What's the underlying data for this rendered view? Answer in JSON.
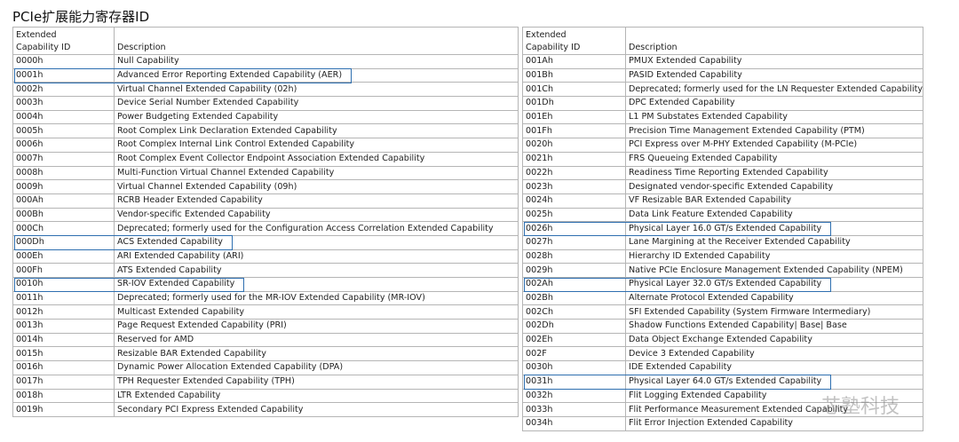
{
  "title": "PCIe扩展能力寄存器ID",
  "watermark": "芯塾科技",
  "tables": [
    {
      "header": [
        "Extended\nCapability ID",
        "Description"
      ],
      "highlighted": [
        1,
        13,
        16
      ],
      "rows": [
        [
          "0000h",
          "Null Capability"
        ],
        [
          "0001h",
          "Advanced Error Reporting Extended Capability (AER)"
        ],
        [
          "0002h",
          "Virtual Channel Extended Capability (02h)"
        ],
        [
          "0003h",
          "Device Serial Number Extended Capability"
        ],
        [
          "0004h",
          "Power Budgeting Extended Capability"
        ],
        [
          "0005h",
          "Root Complex Link Declaration Extended Capability"
        ],
        [
          "0006h",
          "Root Complex Internal Link Control Extended Capability"
        ],
        [
          "0007h",
          "Root Complex Event Collector Endpoint Association Extended Capability"
        ],
        [
          "0008h",
          "Multi-Function Virtual Channel Extended Capability"
        ],
        [
          "0009h",
          "Virtual Channel Extended Capability (09h)"
        ],
        [
          "000Ah",
          "RCRB Header Extended Capability"
        ],
        [
          "000Bh",
          "Vendor-specific Extended Capability"
        ],
        [
          "000Ch",
          "Deprecated; formerly used for the Configuration Access Correlation Extended Capability"
        ],
        [
          "000Dh",
          "ACS Extended Capability"
        ],
        [
          "000Eh",
          "ARI Extended Capability (ARI)"
        ],
        [
          "000Fh",
          "ATS Extended Capability"
        ],
        [
          "0010h",
          "SR-IOV Extended Capability"
        ],
        [
          "0011h",
          "Deprecated; formerly used for the MR-IOV Extended Capability (MR-IOV)"
        ],
        [
          "0012h",
          "Multicast Extended Capability"
        ],
        [
          "0013h",
          "Page Request Extended Capability (PRI)"
        ],
        [
          "0014h",
          "Reserved for AMD"
        ],
        [
          "0015h",
          "Resizable BAR Extended Capability"
        ],
        [
          "0016h",
          "Dynamic Power Allocation Extended Capability (DPA)"
        ],
        [
          "0017h",
          "TPH Requester Extended Capability (TPH)"
        ],
        [
          "0018h",
          "LTR Extended Capability"
        ],
        [
          "0019h",
          "Secondary PCI Express Extended Capability"
        ]
      ]
    },
    {
      "header": [
        "Extended\nCapability ID",
        "Description"
      ],
      "highlighted": [
        12,
        16,
        23
      ],
      "rows": [
        [
          "001Ah",
          "PMUX Extended Capability"
        ],
        [
          "001Bh",
          "PASID Extended Capability"
        ],
        [
          "001Ch",
          "Deprecated; formerly used for the LN Requester Extended Capability"
        ],
        [
          "001Dh",
          "DPC Extended Capability"
        ],
        [
          "001Eh",
          "L1 PM Substates Extended Capability"
        ],
        [
          "001Fh",
          "Precision Time Management Extended Capability (PTM)"
        ],
        [
          "0020h",
          "PCI Express over M-PHY Extended Capability (M-PCIe)"
        ],
        [
          "0021h",
          "FRS Queueing Extended Capability"
        ],
        [
          "0022h",
          "Readiness Time Reporting Extended Capability"
        ],
        [
          "0023h",
          "Designated vendor-specific Extended Capability"
        ],
        [
          "0024h",
          "VF Resizable BAR Extended Capability"
        ],
        [
          "0025h",
          "Data Link Feature Extended Capability"
        ],
        [
          "0026h",
          "Physical Layer 16.0 GT/s Extended Capability"
        ],
        [
          "0027h",
          "Lane Margining at the Receiver Extended Capability"
        ],
        [
          "0028h",
          "Hierarchy ID Extended Capability"
        ],
        [
          "0029h",
          "Native PCIe Enclosure Management Extended Capability (NPEM)"
        ],
        [
          "002Ah",
          "Physical Layer 32.0 GT/s Extended Capability"
        ],
        [
          "002Bh",
          "Alternate Protocol Extended Capability"
        ],
        [
          "002Ch",
          "SFI Extended Capability (System Firmware Intermediary)"
        ],
        [
          "002Dh",
          "Shadow Functions Extended Capability| Base| Base"
        ],
        [
          "002Eh",
          "Data Object Exchange Extended Capability"
        ],
        [
          "002F",
          "Device 3 Extended Capability"
        ],
        [
          "0030h",
          "IDE Extended Capability"
        ],
        [
          "0031h",
          "Physical Layer 64.0 GT/s Extended Capability"
        ],
        [
          "0032h",
          "Flit Logging Extended Capability"
        ],
        [
          "0033h",
          "Flit Performance Measurement Extended Capability"
        ],
        [
          "0034h",
          "Flit Error Injection Extended Capability"
        ]
      ]
    }
  ]
}
